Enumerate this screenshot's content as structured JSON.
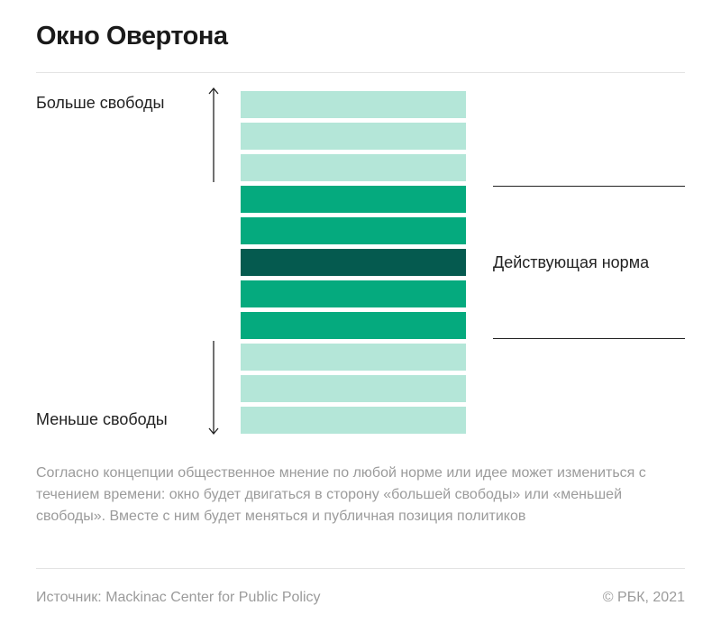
{
  "title": "Окно Овертона",
  "labels": {
    "more_freedom": "Больше свободы",
    "less_freedom": "Меньше свободы",
    "current_norm": "Действующая норма"
  },
  "bands": [
    {
      "level": "light"
    },
    {
      "level": "light"
    },
    {
      "level": "light"
    },
    {
      "level": "medium"
    },
    {
      "level": "medium"
    },
    {
      "level": "dark"
    },
    {
      "level": "medium"
    },
    {
      "level": "medium"
    },
    {
      "level": "light"
    },
    {
      "level": "light"
    },
    {
      "level": "light"
    }
  ],
  "colors": {
    "light": "#b4e6d8",
    "medium": "#05aa7e",
    "dark": "#055a4f"
  },
  "description": "Согласно концепции общественное мнение по любой норме или идее может измениться с течением времени: окно будет двигаться в сторону «большей свободы» или «меньшей свободы». Вместе с ним будет меняться и публичная позиция политиков",
  "footer": {
    "source": "Источник: Mackinac Center for Public Policy",
    "copyright": "© РБК, 2021"
  }
}
